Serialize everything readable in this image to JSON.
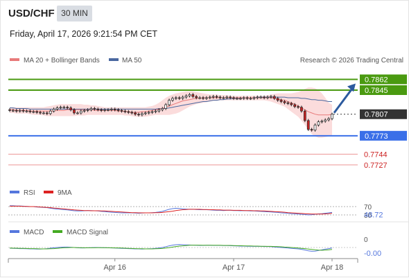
{
  "header": {
    "symbol": "USD/CHF",
    "timeframe": "30 MIN",
    "datetime": "Friday, April 17, 2026 9:21:54 PM CET"
  },
  "colors": {
    "resistance": "#4a9a10",
    "support": "#3a6fe8",
    "pivot_dashed": "#333333",
    "minor_level": "#e05050",
    "ma20": "#e87a7a",
    "ma50": "#4a68a0",
    "bollinger_fill": "#fbdcdc",
    "rsi": "#5577dd",
    "rsi_ma": "#dd2222",
    "macd": "#5577dd",
    "macd_signal": "#44aa22",
    "arrow": "#2c5a9e",
    "candle_up": "#ffffff",
    "candle_down": "#cc2222"
  },
  "legend": {
    "ma20": "MA 20 + Bollinger Bands",
    "ma50": "MA 50",
    "credit": "Research © 2026 Trading Central",
    "rsi": "RSI",
    "rsi_ma": "9MA",
    "macd": "MACD",
    "macd_signal": "MACD Signal"
  },
  "chart_data": {
    "type": "candlestick",
    "price_axis_min": 0.7705,
    "price_axis_max": 0.788,
    "levels": [
      {
        "label": "0.7862",
        "value": 0.7862,
        "kind": "resistance"
      },
      {
        "label": "0.7845",
        "value": 0.7845,
        "kind": "resistance"
      },
      {
        "label": "0.7807",
        "value": 0.7807,
        "kind": "last_price"
      },
      {
        "label": "0.7773",
        "value": 0.7773,
        "kind": "support"
      },
      {
        "label": "0.7744",
        "value": 0.7744,
        "kind": "minor"
      },
      {
        "label": "0.7727",
        "value": 0.7727,
        "kind": "minor"
      }
    ],
    "x_ticks": [
      "Apr 16",
      "Apr 17",
      "Apr 18"
    ],
    "x_tick_index": [
      31,
      66,
      95
    ],
    "candle_count": 96,
    "close": [
      0.7813,
      0.7813,
      0.7812,
      0.7813,
      0.7812,
      0.7812,
      0.7811,
      0.7811,
      0.781,
      0.7809,
      0.7809,
      0.7808,
      0.7812,
      0.7815,
      0.7817,
      0.7818,
      0.7818,
      0.7817,
      0.7814,
      0.7809,
      0.7809,
      0.7812,
      0.7813,
      0.7814,
      0.7816,
      0.7815,
      0.7814,
      0.7813,
      0.7814,
      0.7814,
      0.7815,
      0.7814,
      0.7813,
      0.7812,
      0.7811,
      0.781,
      0.7809,
      0.7807,
      0.7806,
      0.7808,
      0.7809,
      0.781,
      0.7811,
      0.7812,
      0.7814,
      0.7816,
      0.7822,
      0.7829,
      0.7832,
      0.7833,
      0.7832,
      0.7834,
      0.7836,
      0.7838,
      0.7835,
      0.7833,
      0.7833,
      0.7832,
      0.7833,
      0.7834,
      0.7835,
      0.7834,
      0.7833,
      0.7833,
      0.7834,
      0.7833,
      0.7832,
      0.7832,
      0.7832,
      0.7833,
      0.7832,
      0.7832,
      0.7833,
      0.7834,
      0.7834,
      0.7833,
      0.7834,
      0.7835,
      0.7832,
      0.7829,
      0.7827,
      0.7825,
      0.7824,
      0.7822,
      0.7819,
      0.7818,
      0.7812,
      0.7797,
      0.7783,
      0.7782,
      0.779,
      0.7795,
      0.7796,
      0.7798,
      0.78,
      0.7807
    ],
    "ma20": [
      0.7814,
      0.7814,
      0.7813,
      0.7813,
      0.7813,
      0.7813,
      0.7812,
      0.7812,
      0.7812,
      0.7812,
      0.7812,
      0.7812,
      0.7812,
      0.7812,
      0.7813,
      0.7813,
      0.7813,
      0.7814,
      0.7814,
      0.7814,
      0.7814,
      0.7814,
      0.7814,
      0.7814,
      0.7814,
      0.7813,
      0.7813,
      0.7813,
      0.7813,
      0.7813,
      0.7813,
      0.7813,
      0.7812,
      0.7812,
      0.7811,
      0.7811,
      0.781,
      0.781,
      0.781,
      0.7811,
      0.7811,
      0.7812,
      0.7813,
      0.7814,
      0.7815,
      0.7816,
      0.7818,
      0.782,
      0.7822,
      0.7824,
      0.7826,
      0.7828,
      0.7829,
      0.783,
      0.7831,
      0.7832,
      0.7832,
      0.7833,
      0.7833,
      0.7833,
      0.7833,
      0.7833,
      0.7833,
      0.7833,
      0.7833,
      0.7833,
      0.7833,
      0.7833,
      0.7833,
      0.7833,
      0.7833,
      0.7833,
      0.7833,
      0.7833,
      0.7833,
      0.7833,
      0.7833,
      0.7833,
      0.7832,
      0.7831,
      0.783,
      0.7829,
      0.7827,
      0.7825,
      0.7823,
      0.782,
      0.7817,
      0.7814,
      0.7811,
      0.7809,
      0.7807,
      0.7806,
      0.7806,
      0.7806,
      0.7806,
      0.7807
    ],
    "bb_upper": [
      0.7818,
      0.7818,
      0.7818,
      0.7818,
      0.7818,
      0.7818,
      0.7818,
      0.7818,
      0.7818,
      0.7818,
      0.7818,
      0.7819,
      0.782,
      0.7821,
      0.7822,
      0.7823,
      0.7823,
      0.7823,
      0.7823,
      0.7823,
      0.7823,
      0.7823,
      0.7822,
      0.7822,
      0.7821,
      0.7821,
      0.782,
      0.7819,
      0.7818,
      0.7818,
      0.7818,
      0.7818,
      0.7818,
      0.7818,
      0.7818,
      0.7818,
      0.7818,
      0.7818,
      0.7818,
      0.7818,
      0.7818,
      0.7819,
      0.782,
      0.7822,
      0.7825,
      0.7829,
      0.7833,
      0.7836,
      0.7838,
      0.784,
      0.7841,
      0.7842,
      0.7843,
      0.7843,
      0.7843,
      0.7842,
      0.7841,
      0.784,
      0.7839,
      0.7838,
      0.7838,
      0.7838,
      0.7837,
      0.7837,
      0.7837,
      0.7836,
      0.7836,
      0.7836,
      0.7836,
      0.7836,
      0.7836,
      0.7836,
      0.7836,
      0.7836,
      0.7836,
      0.7836,
      0.7837,
      0.7838,
      0.7839,
      0.784,
      0.784,
      0.784,
      0.784,
      0.784,
      0.7841,
      0.7842,
      0.7844,
      0.7847,
      0.7849,
      0.7849,
      0.7848,
      0.7845,
      0.784,
      0.7833,
      0.7825,
      0.7822
    ],
    "bb_lower": [
      0.7809,
      0.7809,
      0.7808,
      0.7808,
      0.7808,
      0.7808,
      0.7807,
      0.7806,
      0.7806,
      0.7806,
      0.7805,
      0.7804,
      0.7804,
      0.7804,
      0.7804,
      0.7804,
      0.7804,
      0.7804,
      0.7804,
      0.7804,
      0.7805,
      0.7805,
      0.7805,
      0.7806,
      0.7806,
      0.7806,
      0.7806,
      0.7806,
      0.7806,
      0.7806,
      0.7806,
      0.7806,
      0.7806,
      0.7806,
      0.7805,
      0.7805,
      0.7804,
      0.7803,
      0.7803,
      0.7803,
      0.7803,
      0.7804,
      0.7805,
      0.7806,
      0.7806,
      0.7806,
      0.7806,
      0.7806,
      0.7807,
      0.7808,
      0.781,
      0.7813,
      0.7816,
      0.7819,
      0.7821,
      0.7823,
      0.7824,
      0.7825,
      0.7826,
      0.7827,
      0.7828,
      0.7828,
      0.7829,
      0.7829,
      0.7829,
      0.7829,
      0.7829,
      0.7829,
      0.7829,
      0.7829,
      0.7829,
      0.7829,
      0.7829,
      0.7829,
      0.7829,
      0.7829,
      0.7828,
      0.7827,
      0.7825,
      0.7823,
      0.7821,
      0.7819,
      0.7815,
      0.7811,
      0.7807,
      0.7803,
      0.7797,
      0.779,
      0.7783,
      0.7776,
      0.7772,
      0.777,
      0.777,
      0.7771,
      0.7772,
      0.7774
    ],
    "ma50": [
      0.7817,
      0.7817,
      0.7816,
      0.7816,
      0.7816,
      0.7816,
      0.7815,
      0.7815,
      0.7815,
      0.7815,
      0.7815,
      0.7815,
      0.7815,
      0.7815,
      0.7815,
      0.7815,
      0.7815,
      0.7815,
      0.7815,
      0.7815,
      0.7815,
      0.7815,
      0.7815,
      0.7815,
      0.7815,
      0.7815,
      0.7815,
      0.7815,
      0.7815,
      0.7815,
      0.7815,
      0.7815,
      0.7815,
      0.7815,
      0.7815,
      0.7815,
      0.7815,
      0.7815,
      0.7815,
      0.7815,
      0.7815,
      0.7815,
      0.7815,
      0.7815,
      0.7816,
      0.7816,
      0.7816,
      0.7817,
      0.7818,
      0.7819,
      0.782,
      0.7821,
      0.7822,
      0.7823,
      0.7824,
      0.7825,
      0.7826,
      0.7827,
      0.7827,
      0.7828,
      0.7829,
      0.7829,
      0.783,
      0.783,
      0.7831,
      0.7831,
      0.7832,
      0.7832,
      0.7832,
      0.7833,
      0.7833,
      0.7833,
      0.7833,
      0.7834,
      0.7834,
      0.7834,
      0.7834,
      0.7834,
      0.7834,
      0.7834,
      0.7834,
      0.7834,
      0.7833,
      0.7833,
      0.7833,
      0.7833,
      0.7832,
      0.7832,
      0.7831,
      0.783,
      0.783,
      0.7829,
      0.7829,
      0.7828,
      0.7827,
      0.7827
    ],
    "rsi": {
      "current_label": "48.72",
      "levels": [
        "70",
        "30"
      ],
      "ymin": 0,
      "ymax": 100,
      "rsi": [
        74,
        74,
        73,
        73,
        72,
        71,
        70,
        70,
        68,
        67,
        66,
        65,
        62,
        60,
        58,
        57,
        55,
        54,
        52,
        50,
        49,
        49,
        50,
        51,
        51,
        50,
        49,
        47,
        46,
        44,
        43,
        42,
        41,
        40,
        40,
        40,
        40,
        39,
        38,
        39,
        40,
        40,
        41,
        42,
        44,
        47,
        52,
        57,
        60,
        62,
        61,
        59,
        58,
        57,
        57,
        56,
        55,
        55,
        55,
        54,
        53,
        52,
        52,
        51,
        52,
        52,
        51,
        51,
        50,
        51,
        50,
        49,
        49,
        48,
        47,
        46,
        45,
        44,
        43,
        42,
        40,
        39,
        38,
        36,
        35,
        34,
        33,
        32,
        30,
        31,
        33,
        35,
        36,
        38,
        40,
        42
      ],
      "ma9": [
        72,
        72,
        72,
        72,
        71,
        71,
        70,
        70,
        69,
        68,
        67,
        66,
        65,
        63,
        62,
        60,
        59,
        57,
        56,
        54,
        53,
        52,
        51,
        51,
        50,
        50,
        50,
        49,
        49,
        48,
        47,
        46,
        45,
        44,
        43,
        42,
        41,
        41,
        40,
        40,
        40,
        40,
        40,
        41,
        41,
        42,
        44,
        46,
        48,
        51,
        53,
        55,
        56,
        57,
        57,
        57,
        57,
        56,
        56,
        55,
        55,
        54,
        54,
        53,
        53,
        53,
        52,
        52,
        52,
        51,
        51,
        51,
        50,
        50,
        49,
        49,
        48,
        47,
        46,
        45,
        44,
        43,
        41,
        40,
        39,
        38,
        37,
        36,
        35,
        34,
        34,
        34,
        34,
        35,
        36,
        38
      ]
    },
    "macd": {
      "current_label": "-0.00",
      "zero_label": "0",
      "ymin": -0.0006,
      "ymax": 0.0006,
      "macd": [
        -5e-05,
        -6e-05,
        -7e-05,
        -8e-05,
        -8e-05,
        -9e-05,
        -0.0001,
        -0.0001,
        -0.00011,
        -0.00011,
        -0.0001,
        -8e-05,
        -5e-05,
        -2e-05,
        0.0,
        2e-05,
        3e-05,
        3e-05,
        2e-05,
        0.0,
        -2e-05,
        -3e-05,
        -3e-05,
        -2e-05,
        -1e-05,
        0.0,
        0.0,
        -1e-05,
        -2e-05,
        -2e-05,
        -3e-05,
        -4e-05,
        -5e-05,
        -6e-05,
        -7e-05,
        -8e-05,
        -9e-05,
        -0.0001,
        -0.0001,
        -0.00011,
        -0.0001,
        -9e-05,
        -8e-05,
        -6e-05,
        -4e-05,
        0.0,
        6e-05,
        0.00012,
        0.00017,
        0.0002,
        0.00021,
        0.0002,
        0.00019,
        0.00018,
        0.00017,
        0.00016,
        0.00015,
        0.00015,
        0.00016,
        0.00016,
        0.00015,
        0.00015,
        0.00015,
        0.00014,
        0.00014,
        0.00013,
        0.00012,
        0.00011,
        0.0001,
        0.0001,
        9e-05,
        9e-05,
        8e-05,
        8e-05,
        8e-05,
        7e-05,
        7e-05,
        6e-05,
        4e-05,
        2e-05,
        0.0,
        -2e-05,
        -4e-05,
        -6e-05,
        -8e-05,
        -0.0001,
        -0.00013,
        -0.00018,
        -0.00024,
        -0.00027,
        -0.00026,
        -0.00022,
        -0.00017,
        -0.00012,
        -8e-05,
        -3e-05
      ],
      "signal": [
        -4e-05,
        -5e-05,
        -5e-05,
        -6e-05,
        -6e-05,
        -7e-05,
        -8e-05,
        -8e-05,
        -9e-05,
        -0.0001,
        -0.0001,
        -0.0001,
        -9e-05,
        -8e-05,
        -6e-05,
        -4e-05,
        -2e-05,
        -1e-05,
        0.0,
        0.0,
        -1e-05,
        -1e-05,
        -2e-05,
        -2e-05,
        -2e-05,
        -2e-05,
        -1e-05,
        -1e-05,
        -1e-05,
        -2e-05,
        -2e-05,
        -3e-05,
        -3e-05,
        -4e-05,
        -5e-05,
        -6e-05,
        -7e-05,
        -8e-05,
        -9e-05,
        -9e-05,
        -0.0001,
        -0.0001,
        -0.0001,
        -9e-05,
        -8e-05,
        -7e-05,
        -4e-05,
        -1e-05,
        3e-05,
        7e-05,
        0.0001,
        0.00012,
        0.00014,
        0.00016,
        0.00017,
        0.00017,
        0.00017,
        0.00016,
        0.00016,
        0.00016,
        0.00016,
        0.00016,
        0.00016,
        0.00015,
        0.00015,
        0.00015,
        0.00014,
        0.00013,
        0.00013,
        0.00012,
        0.00011,
        0.00011,
        0.0001,
        0.0001,
        9e-05,
        9e-05,
        8e-05,
        8e-05,
        7e-05,
        6e-05,
        5e-05,
        3e-05,
        2e-05,
        0.0,
        -2e-05,
        -4e-05,
        -6e-05,
        -8e-05,
        -0.00011,
        -0.00014,
        -0.00017,
        -0.00019,
        -0.0002,
        -0.00019,
        -0.00017,
        -0.00014
      ]
    }
  }
}
